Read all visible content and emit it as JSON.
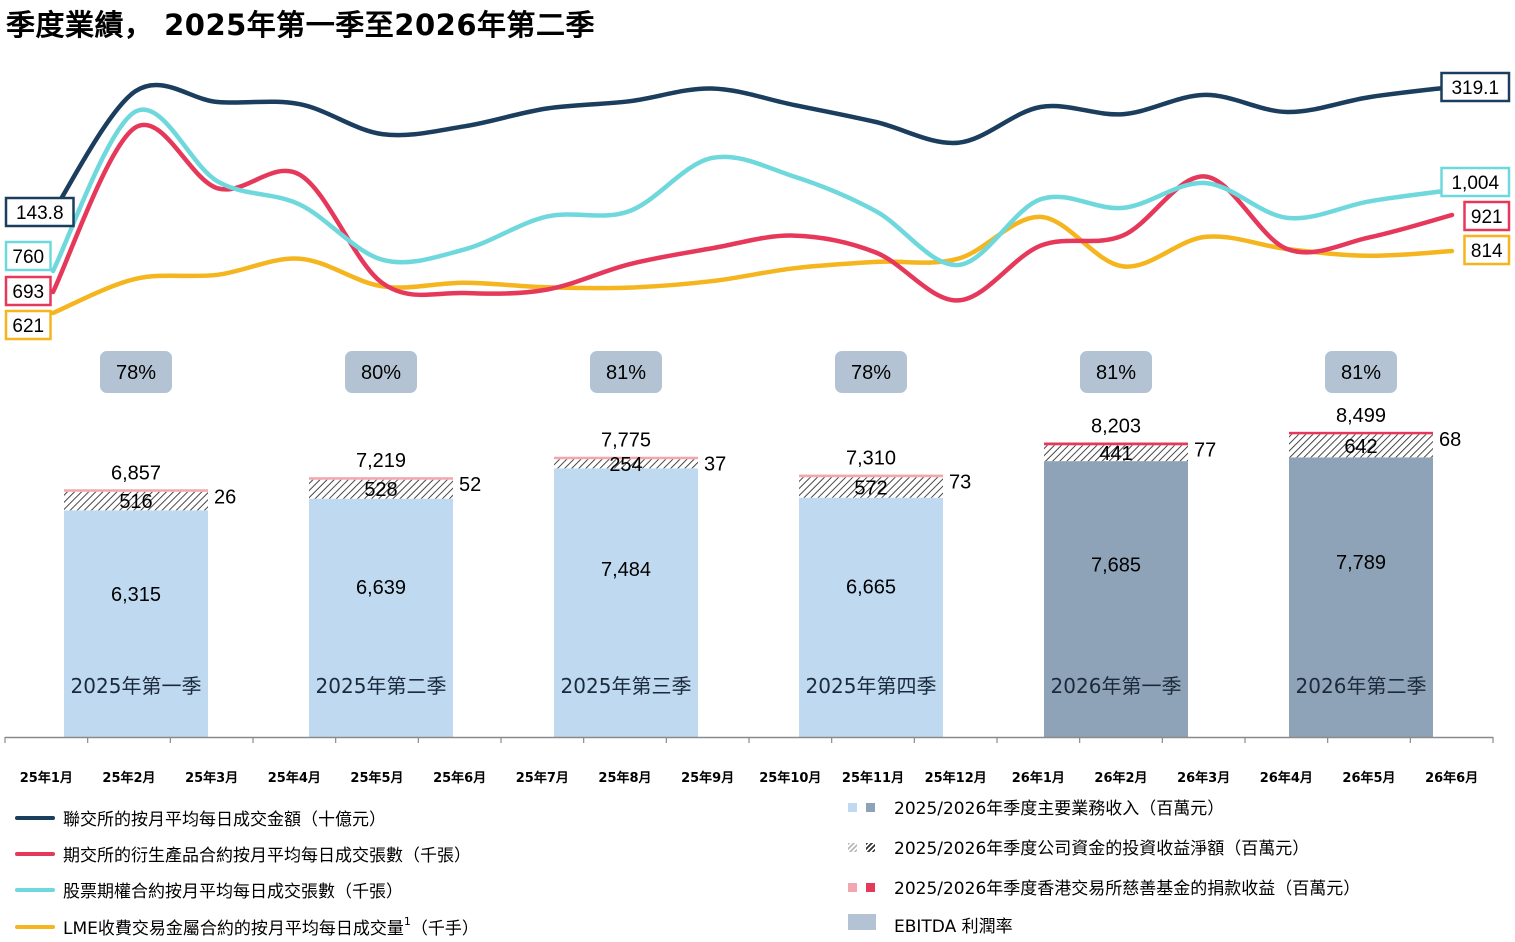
{
  "title": "季度業績， 2025年第一季至2026年第二季",
  "chart_data": {
    "type": "bar",
    "months": [
      "25年1月",
      "25年2月",
      "25年3月",
      "25年4月",
      "25年5月",
      "25年6月",
      "25年7月",
      "25年8月",
      "25年9月",
      "25年10月",
      "25年11月",
      "25年12月",
      "26年1月",
      "26年2月",
      "26年3月",
      "26年4月",
      "26年5月",
      "26年6月"
    ],
    "quarters": [
      {
        "label": "2025年第一季",
        "main_revenue": "6,315",
        "main_value": 6315,
        "investment": "516",
        "investment_value": 516,
        "donation": "26",
        "donation_value": 26,
        "total": "6,857",
        "ebitda_margin": "78%",
        "year": "2025"
      },
      {
        "label": "2025年第二季",
        "main_revenue": "6,639",
        "main_value": 6639,
        "investment": "528",
        "investment_value": 528,
        "donation": "52",
        "donation_value": 52,
        "total": "7,219",
        "ebitda_margin": "80%",
        "year": "2025"
      },
      {
        "label": "2025年第三季",
        "main_revenue": "7,484",
        "main_value": 7484,
        "investment": "254",
        "investment_value": 254,
        "donation": "37",
        "donation_value": 37,
        "total": "7,775",
        "ebitda_margin": "81%",
        "year": "2025"
      },
      {
        "label": "2025年第四季",
        "main_revenue": "6,665",
        "main_value": 6665,
        "investment": "572",
        "investment_value": 572,
        "donation": "73",
        "donation_value": 73,
        "total": "7,310",
        "ebitda_margin": "78%",
        "year": "2025"
      },
      {
        "label": "2026年第一季",
        "main_revenue": "7,685",
        "main_value": 7685,
        "investment": "441",
        "investment_value": 441,
        "donation": "77",
        "donation_value": 77,
        "total": "8,203",
        "ebitda_margin": "81%",
        "year": "2026"
      },
      {
        "label": "2026年第二季",
        "main_revenue": "7,789",
        "main_value": 7789,
        "investment": "642",
        "investment_value": 642,
        "donation": "68",
        "donation_value": 68,
        "total": "8,499",
        "ebitda_margin": "81%",
        "year": "2026"
      }
    ],
    "line_series": [
      {
        "key": "hkex",
        "color": "#1b3d5e",
        "start_label": "143.8",
        "end_label": "319.1",
        "values": [
          143.8,
          313,
          298,
          295,
          253,
          264,
          289,
          299,
          317,
          294,
          270,
          241,
          291,
          281,
          308,
          284,
          305,
          319.1
        ]
      },
      {
        "key": "hkfe",
        "color": "#e5385a",
        "start_label": "693",
        "end_label": "921",
        "values": [
          693,
          1180,
          1000,
          1040,
          720,
          690,
          700,
          775,
          822,
          860,
          810,
          668,
          830,
          860,
          1035,
          820,
          855,
          921
        ]
      },
      {
        "key": "options",
        "color": "#6fd8dd",
        "start_label": "760",
        "end_label": "1,004",
        "values": [
          760,
          1240,
          1030,
          960,
          794,
          825,
          924,
          940,
          1100,
          1045,
          940,
          778,
          976,
          950,
          1025,
          920,
          970,
          1004
        ]
      },
      {
        "key": "lme",
        "color": "#f5b51e",
        "start_label": "621",
        "end_label": "814",
        "values": [
          621,
          727,
          740,
          790,
          704,
          715,
          701,
          700,
          720,
          760,
          780,
          790,
          920,
          766,
          858,
          820,
          799,
          814
        ]
      }
    ]
  },
  "colors": {
    "bar_2025": "#bfd9f1",
    "bar_2026": "#8ea3b7",
    "margin_badge": "#b3c3d3",
    "donation_2025": "#f3a5b0",
    "donation_2026": "#e5385a"
  },
  "legend": {
    "lines": [
      {
        "text": "聯交所的按月平均每日成交金額（十億元）",
        "color": "#1b3d5e"
      },
      {
        "text": "期交所的衍生產品合約按月平均每日成交張數（千張）",
        "color": "#e5385a"
      },
      {
        "text": "股票期權合約按月平均每日成交張數（千張）",
        "color": "#6fd8dd"
      },
      {
        "text": "LME收費交易金屬合約的按月平均每日成交量",
        "sup": "1",
        "tail": "（千手）",
        "color": "#f5b51e"
      }
    ],
    "bars": [
      {
        "text": "2025/2026年季度主要業務收入（百萬元）"
      },
      {
        "text": "2025/2026年季度公司資金的投資收益淨額（百萬元）"
      },
      {
        "text": "2025/2026年季度香港交易所慈善基金的捐款收益（百萬元）"
      },
      {
        "text": "EBITDA 利潤率"
      }
    ]
  }
}
